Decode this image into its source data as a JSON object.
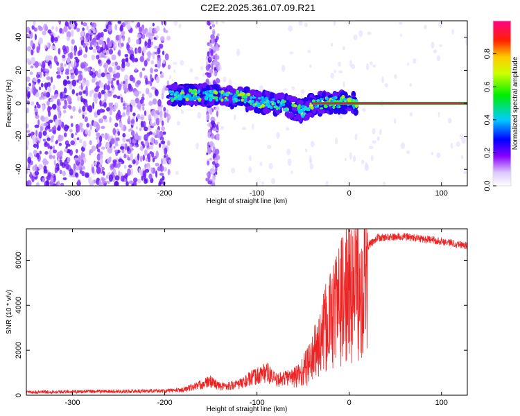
{
  "title": "C2E2.2025.361.07.09.R21",
  "colors": {
    "snr_line": "#ee2222",
    "tone_line": "#22aa22",
    "frame": "#000000"
  },
  "chart_data": [
    {
      "type": "heatmap",
      "name": "spectrogram",
      "xlabel": "Height of straight line (km)",
      "ylabel": "Frequency (Hz)",
      "xlim": [
        -350,
        128
      ],
      "ylim": [
        -50,
        50
      ],
      "xticks": [
        -300,
        -200,
        -100,
        0,
        100
      ],
      "yticks": [
        -40,
        -20,
        0,
        20,
        40
      ],
      "tone": {
        "x_start": -40,
        "x_end": 128,
        "freq": 0
      },
      "noise_edges": {
        "dense_until": -195,
        "stripe_center": -148
      },
      "track": [
        {
          "x": -195,
          "y": 5
        },
        {
          "x": -150,
          "y": 5
        },
        {
          "x": -120,
          "y": 4
        },
        {
          "x": -100,
          "y": 1
        },
        {
          "x": -80,
          "y": 0
        },
        {
          "x": -60,
          "y": -3
        },
        {
          "x": -50,
          "y": -5
        },
        {
          "x": -40,
          "y": -1
        },
        {
          "x": -30,
          "y": 0
        },
        {
          "x": 0,
          "y": 1
        },
        {
          "x": 8,
          "y": 0
        }
      ],
      "colorbar": {
        "label": "Normalized spectral amplitude",
        "range": [
          0,
          1
        ],
        "ticks": [
          "0.0",
          "0.2",
          "0.4",
          "0.6",
          "0.8"
        ]
      }
    },
    {
      "type": "line",
      "name": "snr",
      "xlabel": "Height of straight line (km)",
      "ylabel": "SNR (10 * v/v)",
      "xlim": [
        -350,
        128
      ],
      "ylim": [
        0,
        7400
      ],
      "xticks": [
        -300,
        -200,
        -100,
        0,
        100
      ],
      "yticks": [
        0,
        2000,
        4000,
        6000
      ],
      "envelope": [
        {
          "x": -350,
          "y": 150
        },
        {
          "x": -200,
          "y": 200
        },
        {
          "x": -180,
          "y": 250
        },
        {
          "x": -160,
          "y": 500
        },
        {
          "x": -150,
          "y": 650
        },
        {
          "x": -140,
          "y": 400
        },
        {
          "x": -120,
          "y": 500
        },
        {
          "x": -100,
          "y": 900
        },
        {
          "x": -90,
          "y": 1100
        },
        {
          "x": -80,
          "y": 700
        },
        {
          "x": -60,
          "y": 900
        },
        {
          "x": -50,
          "y": 1300
        },
        {
          "x": -40,
          "y": 2000
        },
        {
          "x": -30,
          "y": 3000
        },
        {
          "x": -20,
          "y": 4200
        },
        {
          "x": -10,
          "y": 5000
        },
        {
          "x": 0,
          "y": 5500
        },
        {
          "x": 10,
          "y": 6000
        },
        {
          "x": 20,
          "y": 6600
        },
        {
          "x": 30,
          "y": 7000
        },
        {
          "x": 60,
          "y": 7050
        },
        {
          "x": 100,
          "y": 6850
        },
        {
          "x": 128,
          "y": 6650
        }
      ]
    }
  ]
}
